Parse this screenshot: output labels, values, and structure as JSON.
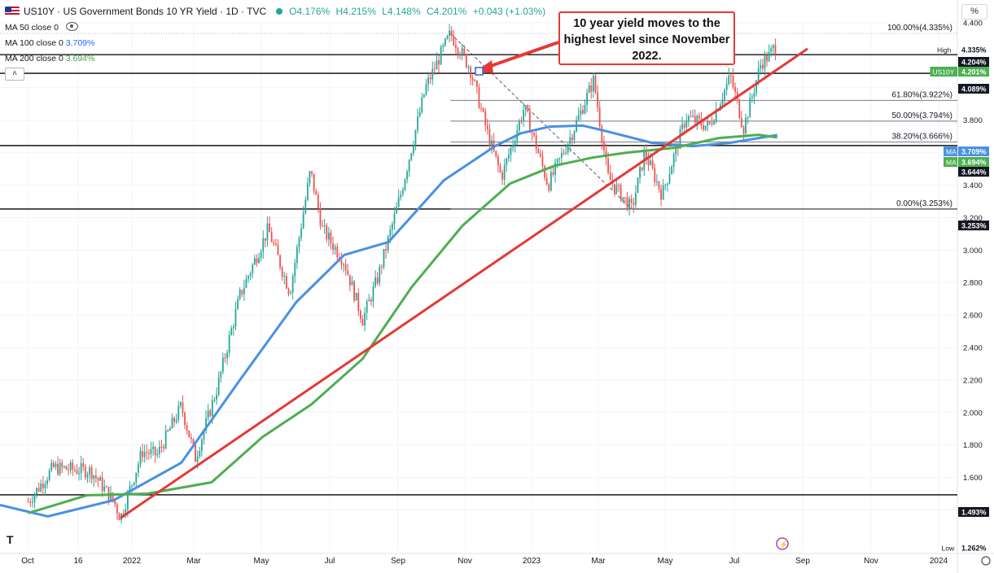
{
  "header": {
    "title": "US10Y · US Government Bonds 10 YR Yield · 1D · TVC",
    "open": "O4.176%",
    "high": "H4.215%",
    "low": "L4.148%",
    "close": "C4.201%",
    "change": "+0.043 (+1.03%)"
  },
  "indicators": [
    {
      "label": "MA 50 close 0",
      "value": "",
      "color": "#131722"
    },
    {
      "label": "MA 100 close 0",
      "value": "3.709%",
      "color": "#2962ff"
    },
    {
      "label": "MA 200 close 0",
      "value": "3.694%",
      "color": "#43a047"
    }
  ],
  "collapse_label": "˄",
  "percent_label": "%",
  "callout": "10 year yield moves to the highest level since November 2022.",
  "chart_data": {
    "type": "line",
    "ylim": [
      1.262,
      4.4
    ],
    "y_ticks": [
      "4.400",
      "4.000",
      "3.800",
      "3.400",
      "3.200",
      "3.000",
      "2.800",
      "2.600",
      "2.400",
      "2.200",
      "2.000",
      "1.800",
      "1.600",
      "1.400"
    ],
    "x_ticks": [
      "Oct",
      "16",
      "2022",
      "Mar",
      "May",
      "Jul",
      "Sep",
      "Nov",
      "2023",
      "Mar",
      "May",
      "Jul",
      "Sep",
      "Nov",
      "2024"
    ],
    "price": [
      [
        "2021-09-27",
        1.45
      ],
      [
        "2021-10-20",
        1.66
      ],
      [
        "2021-11-24",
        1.64
      ],
      [
        "2021-12-15",
        1.45
      ],
      [
        "2021-12-21",
        1.35
      ],
      [
        "2022-01-10",
        1.76
      ],
      [
        "2022-01-24",
        1.74
      ],
      [
        "2022-02-15",
        2.04
      ],
      [
        "2022-02-28",
        1.72
      ],
      [
        "2022-03-20",
        2.15
      ],
      [
        "2022-04-10",
        2.72
      ],
      [
        "2022-05-06",
        3.13
      ],
      [
        "2022-05-26",
        2.74
      ],
      [
        "2022-06-14",
        3.49
      ],
      [
        "2022-06-25",
        3.13
      ],
      [
        "2022-07-15",
        2.93
      ],
      [
        "2022-08-01",
        2.57
      ],
      [
        "2022-08-15",
        2.83
      ],
      [
        "2022-09-05",
        3.34
      ],
      [
        "2022-09-28",
        4.0
      ],
      [
        "2022-10-21",
        4.335
      ],
      [
        "2022-11-08",
        4.12
      ],
      [
        "2022-11-25",
        3.7
      ],
      [
        "2022-12-07",
        3.45
      ],
      [
        "2022-12-28",
        3.88
      ],
      [
        "2023-01-19",
        3.4
      ],
      [
        "2023-02-10",
        3.72
      ],
      [
        "2023-03-02",
        4.05
      ],
      [
        "2023-03-15",
        3.45
      ],
      [
        "2023-04-06",
        3.253
      ],
      [
        "2023-04-18",
        3.6
      ],
      [
        "2023-05-04",
        3.34
      ],
      [
        "2023-05-26",
        3.82
      ],
      [
        "2023-06-16",
        3.76
      ],
      [
        "2023-07-06",
        4.07
      ],
      [
        "2023-07-18",
        3.75
      ],
      [
        "2023-08-03",
        4.15
      ],
      [
        "2023-08-11",
        4.2
      ],
      [
        "2023-08-16",
        4.26
      ],
      [
        "2023-08-18",
        4.201
      ]
    ],
    "ma100": [
      [
        "2021-09-01",
        1.43
      ],
      [
        "2021-10-15",
        1.36
      ],
      [
        "2021-12-15",
        1.46
      ],
      [
        "2022-02-15",
        1.69
      ],
      [
        "2022-04-10",
        2.2
      ],
      [
        "2022-06-01",
        2.68
      ],
      [
        "2022-07-15",
        2.97
      ],
      [
        "2022-08-25",
        3.05
      ],
      [
        "2022-10-15",
        3.43
      ],
      [
        "2022-12-01",
        3.64
      ],
      [
        "2022-12-25",
        3.72
      ],
      [
        "2023-01-20",
        3.76
      ],
      [
        "2023-02-20",
        3.767
      ],
      [
        "2023-03-15",
        3.73
      ],
      [
        "2023-04-25",
        3.66
      ],
      [
        "2023-06-01",
        3.64
      ],
      [
        "2023-07-05",
        3.66
      ],
      [
        "2023-08-18",
        3.709
      ]
    ],
    "ma200": [
      [
        "2021-09-27",
        1.38
      ],
      [
        "2021-11-20",
        1.49
      ],
      [
        "2022-01-15",
        1.5
      ],
      [
        "2022-03-15",
        1.57
      ],
      [
        "2022-05-01",
        1.85
      ],
      [
        "2022-06-15",
        2.05
      ],
      [
        "2022-08-01",
        2.33
      ],
      [
        "2022-09-15",
        2.77
      ],
      [
        "2022-11-01",
        3.15
      ],
      [
        "2022-12-15",
        3.41
      ],
      [
        "2023-01-25",
        3.52
      ],
      [
        "2023-03-01",
        3.57
      ],
      [
        "2023-04-01",
        3.6
      ],
      [
        "2023-05-15",
        3.63
      ],
      [
        "2023-06-25",
        3.69
      ],
      [
        "2023-08-01",
        3.71
      ],
      [
        "2023-08-18",
        3.694
      ]
    ],
    "trendline": [
      [
        "2021-12-21",
        1.35
      ],
      [
        "2023-09-15",
        4.24
      ]
    ],
    "diagonal": [
      [
        "2022-10-21",
        4.335
      ],
      [
        "2023-04-06",
        3.253
      ]
    ],
    "horizontal_levels": [
      {
        "value": 4.204,
        "label": "4.204%"
      },
      {
        "value": 4.089,
        "label": "4.089%"
      },
      {
        "value": 3.644,
        "label": "3.644%"
      },
      {
        "value": 3.253,
        "label": "3.253%"
      },
      {
        "value": 1.493,
        "label": "1.493%"
      }
    ],
    "fib_levels": [
      {
        "value": 4.335,
        "label": "100.00%(4.335%)"
      },
      {
        "value": 3.922,
        "label": "61.80%(3.922%)"
      },
      {
        "value": 3.794,
        "label": "50.00%(3.794%)"
      },
      {
        "value": 3.666,
        "label": "38.20%(3.666%)"
      },
      {
        "value": 3.253,
        "label": "0.00%(3.253%)"
      }
    ],
    "price_tags": [
      {
        "value": 4.335,
        "label": "4.335%",
        "prefix": "High",
        "style": "plain"
      },
      {
        "value": 4.204,
        "label": "4.204%",
        "prefix": "",
        "style": "dark"
      },
      {
        "value": 4.201,
        "label": "4.201%",
        "prefix": "US10Y",
        "style": "green"
      },
      {
        "value": 4.089,
        "label": "4.089%",
        "prefix": "",
        "style": "dark"
      },
      {
        "value": 3.709,
        "label": "3.709%",
        "prefix": "MA",
        "style": "blue"
      },
      {
        "value": 3.694,
        "label": "3.694%",
        "prefix": "MA",
        "style": "green"
      },
      {
        "value": 3.644,
        "label": "3.644%",
        "prefix": "",
        "style": "dark"
      },
      {
        "value": 3.253,
        "label": "3.253%",
        "prefix": "",
        "style": "dark"
      },
      {
        "value": 1.493,
        "label": "1.493%",
        "prefix": "",
        "style": "dark"
      },
      {
        "value": 1.262,
        "label": "1.262%",
        "prefix": "Low",
        "style": "plain"
      }
    ],
    "colors": {
      "up": "#26a69a",
      "down": "#ef5350",
      "ma100": "#4a90e2",
      "ma200": "#4caf50",
      "trend": "#e53935",
      "grid": "#f0f3fa"
    }
  }
}
